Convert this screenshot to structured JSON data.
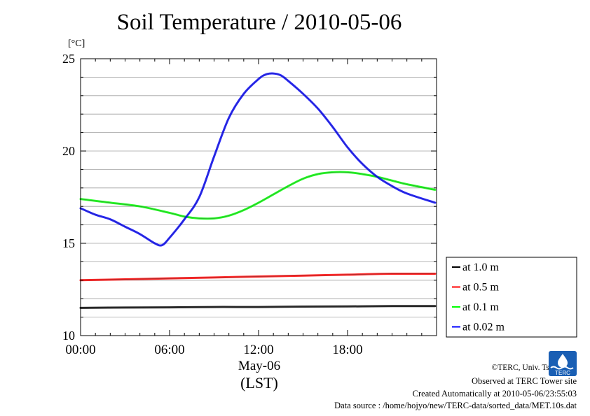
{
  "title": "Soil Temperature / 2010-05-06",
  "unit_label": "[°C]",
  "x_date_label": "May-06",
  "x_tz_label": "(LST)",
  "credits": {
    "copyright": "©TERC, Univ. Tsukuba",
    "observed": "Observed at TERC Tower site",
    "created": "Created Automatically at 2010-05-06/23:55:03",
    "source": "Data source : /home/hojyo/new/TERC-data/sorted_data/MET.10s.dat"
  },
  "logo_text": "TERC",
  "chart_data": {
    "type": "line",
    "title": "Soil Temperature / 2010-05-06",
    "ylabel": "[°C]",
    "xlabel": "May-06 (LST)",
    "xlim": [
      0,
      24
    ],
    "ylim": [
      10,
      25
    ],
    "x_ticks": [
      0,
      6,
      12,
      18
    ],
    "x_tick_labels": [
      "00:00",
      "06:00",
      "12:00",
      "18:00"
    ],
    "y_ticks": [
      10,
      15,
      20,
      25
    ],
    "y_tick_labels": [
      "10",
      "15",
      "20",
      "25"
    ],
    "y_minor_step": 1,
    "grid": true,
    "legend_position": "lower-right-outside",
    "series": [
      {
        "name": "at 1.0 m",
        "color": "#000000",
        "x": [
          0,
          3,
          6,
          9,
          12,
          15,
          18,
          21,
          23.9
        ],
        "y": [
          11.5,
          11.52,
          11.53,
          11.55,
          11.55,
          11.57,
          11.58,
          11.6,
          11.6
        ]
      },
      {
        "name": "at 0.5 m",
        "color": "#ff0000",
        "x": [
          0,
          3,
          6,
          9,
          12,
          15,
          18,
          21,
          23.9
        ],
        "y": [
          13.0,
          13.05,
          13.1,
          13.15,
          13.2,
          13.25,
          13.3,
          13.35,
          13.35
        ]
      },
      {
        "name": "at 0.1 m",
        "color": "#00ff00",
        "x": [
          0,
          2,
          4,
          6,
          7,
          8,
          9,
          10,
          11,
          12,
          13,
          14,
          15,
          16,
          17,
          18,
          19,
          20,
          21,
          22,
          23.9
        ],
        "y": [
          17.4,
          17.2,
          17.0,
          16.65,
          16.45,
          16.35,
          16.35,
          16.5,
          16.8,
          17.2,
          17.65,
          18.1,
          18.5,
          18.75,
          18.85,
          18.85,
          18.75,
          18.6,
          18.4,
          18.2,
          17.9
        ]
      },
      {
        "name": "at 0.02 m",
        "color": "#0000ff",
        "x": [
          0,
          1,
          2,
          3,
          4,
          5,
          5.5,
          6,
          7,
          8,
          9,
          10,
          11,
          12,
          12.5,
          13,
          13.5,
          14,
          15,
          16,
          17,
          18,
          19,
          20,
          21,
          22,
          23.9
        ],
        "y": [
          16.9,
          16.55,
          16.3,
          15.9,
          15.5,
          15.0,
          14.9,
          15.3,
          16.3,
          17.5,
          19.7,
          21.8,
          23.1,
          23.9,
          24.15,
          24.2,
          24.1,
          23.8,
          23.1,
          22.3,
          21.3,
          20.2,
          19.3,
          18.6,
          18.1,
          17.7,
          17.2
        ]
      }
    ]
  }
}
